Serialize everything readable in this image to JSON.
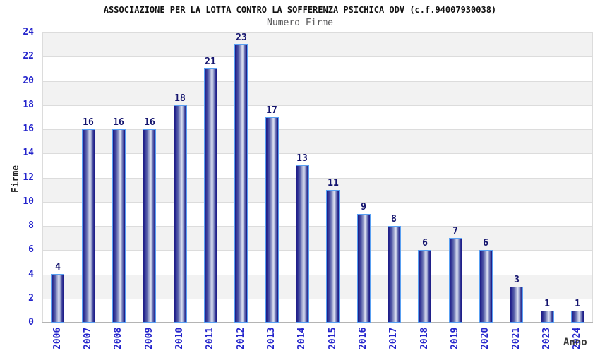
{
  "chart_data": {
    "type": "bar",
    "title": "ASSOCIAZIONE PER LA LOTTA CONTRO LA SOFFERENZA PSICHICA ODV (c.f.94007930038)",
    "subtitle": "Numero Firme",
    "xlabel": "Anno",
    "ylabel": "Firme",
    "categories": [
      "2006",
      "2007",
      "2008",
      "2009",
      "2010",
      "2011",
      "2012",
      "2013",
      "2014",
      "2015",
      "2016",
      "2017",
      "2018",
      "2019",
      "2020",
      "2021",
      "2023",
      "2024"
    ],
    "values": [
      4,
      16,
      16,
      16,
      18,
      21,
      23,
      17,
      13,
      11,
      9,
      8,
      6,
      7,
      6,
      3,
      1,
      1
    ],
    "ylim": [
      0,
      24
    ],
    "ytick_step": 2,
    "grid": "horizontal-bands",
    "legend": "none",
    "colors": {
      "bar_dark": "#1d1d86",
      "bar_highlight": "#dde1f1",
      "bar_border": "#59a0f2",
      "tick_label": "#2424cc",
      "value_label": "#14146e",
      "band_gray": "#f2f2f2",
      "band_white": "#ffffff",
      "gridline": "#dcdcdc",
      "axis_line": "#b4b4b4",
      "title": "#111111",
      "subtitle": "#58585a",
      "xlabel": "#3a3a3a",
      "ylabel": "#222222"
    }
  }
}
